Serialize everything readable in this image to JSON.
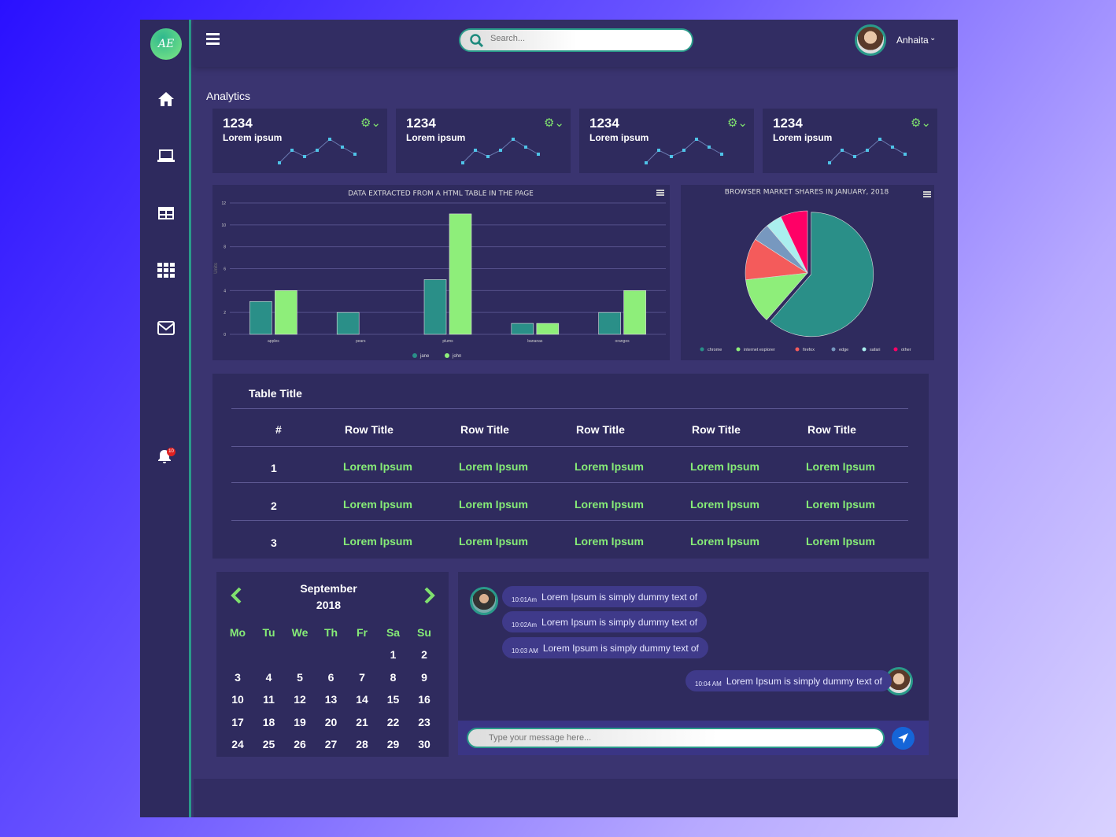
{
  "header": {
    "search_placeholder": "Search...",
    "user_name": "Anhaita"
  },
  "sidebar": {
    "logo": "AE",
    "items": [
      {
        "icon": "home-icon"
      },
      {
        "icon": "laptop-icon"
      },
      {
        "icon": "table-icon"
      },
      {
        "icon": "grid-icon"
      },
      {
        "icon": "mail-icon"
      }
    ],
    "notification_count": "10"
  },
  "page_title": "Analytics",
  "stats": [
    {
      "value": "1234",
      "label": "Lorem ipsum"
    },
    {
      "value": "1234",
      "label": "Lorem ipsum"
    },
    {
      "value": "1234",
      "label": "Lorem ipsum"
    },
    {
      "value": "1234",
      "label": "Lorem ipsum"
    }
  ],
  "colors": {
    "teal": "#2a8f88",
    "green": "#8eee7a",
    "accent": "#86ec77"
  },
  "chart_data": [
    {
      "type": "bar",
      "title": "DATA EXTRACTED FROM A HTML TABLE IN THE PAGE",
      "ylabel": "Units",
      "xlabel": "",
      "ylim": [
        0,
        12
      ],
      "yticks": [
        0,
        2,
        4,
        6,
        8,
        10,
        12
      ],
      "grid": true,
      "legend": "bottom",
      "categories": [
        "Apples",
        "Pears",
        "Plums",
        "Bananas",
        "Oranges"
      ],
      "series": [
        {
          "name": "Jane",
          "color": "#2a8f88",
          "values": [
            3,
            2,
            5,
            1,
            2
          ]
        },
        {
          "name": "John",
          "color": "#8eee7a",
          "values": [
            4,
            0,
            11,
            1,
            4
          ]
        }
      ]
    },
    {
      "type": "pie",
      "title": "BROWSER MARKET SHARES IN JANUARY, 2018",
      "legend": "bottom",
      "slices": [
        {
          "name": "Chrome",
          "value": 61.41,
          "color": "#2a8f88"
        },
        {
          "name": "Internet Explorer",
          "value": 11.84,
          "color": "#8eee7a"
        },
        {
          "name": "Firefox",
          "value": 10.85,
          "color": "#f45b5b"
        },
        {
          "name": "Edge",
          "value": 4.67,
          "color": "#7798bf"
        },
        {
          "name": "Safari",
          "value": 4.18,
          "color": "#aaeeee"
        },
        {
          "name": "Other",
          "value": 7.05,
          "color": "#ff0066"
        }
      ]
    }
  ],
  "table": {
    "title": "Table Title",
    "headers": [
      "#",
      "Row Title",
      "Row Title",
      "Row Title",
      "Row Title",
      "Row Title"
    ],
    "rows": [
      [
        "1",
        "Lorem Ipsum",
        "Lorem Ipsum",
        "Lorem Ipsum",
        "Lorem Ipsum",
        "Lorem Ipsum"
      ],
      [
        "2",
        "Lorem Ipsum",
        "Lorem Ipsum",
        "Lorem Ipsum",
        "Lorem Ipsum",
        "Lorem Ipsum"
      ],
      [
        "3",
        "Lorem Ipsum",
        "Lorem Ipsum",
        "Lorem Ipsum",
        "Lorem Ipsum",
        "Lorem Ipsum"
      ]
    ]
  },
  "calendar": {
    "month": "September",
    "year": "2018",
    "weekdays": [
      "Mo",
      "Tu",
      "We",
      "Th",
      "Fr",
      "Sa",
      "Su"
    ],
    "weeks": [
      [
        "",
        "",
        "",
        "",
        "",
        "1",
        "2"
      ],
      [
        "3",
        "4",
        "5",
        "6",
        "7",
        "8",
        "9"
      ],
      [
        "10",
        "11",
        "12",
        "13",
        "14",
        "15",
        "16"
      ],
      [
        "17",
        "18",
        "19",
        "20",
        "21",
        "22",
        "23"
      ],
      [
        "24",
        "25",
        "26",
        "27",
        "28",
        "29",
        "30"
      ]
    ]
  },
  "chat": {
    "messages": [
      {
        "time": "10:01Am",
        "text": "Lorem Ipsum is simply dummy text of",
        "side": "left"
      },
      {
        "time": "10:02Am",
        "text": "Lorem Ipsum is simply dummy text of",
        "side": "left"
      },
      {
        "time": "10:03 AM",
        "text": "Lorem Ipsum is simply dummy text of",
        "side": "left"
      },
      {
        "time": "10:04 AM",
        "text": "Lorem Ipsum is simply dummy text of",
        "side": "right"
      }
    ],
    "input_placeholder": "Type your message here..."
  }
}
